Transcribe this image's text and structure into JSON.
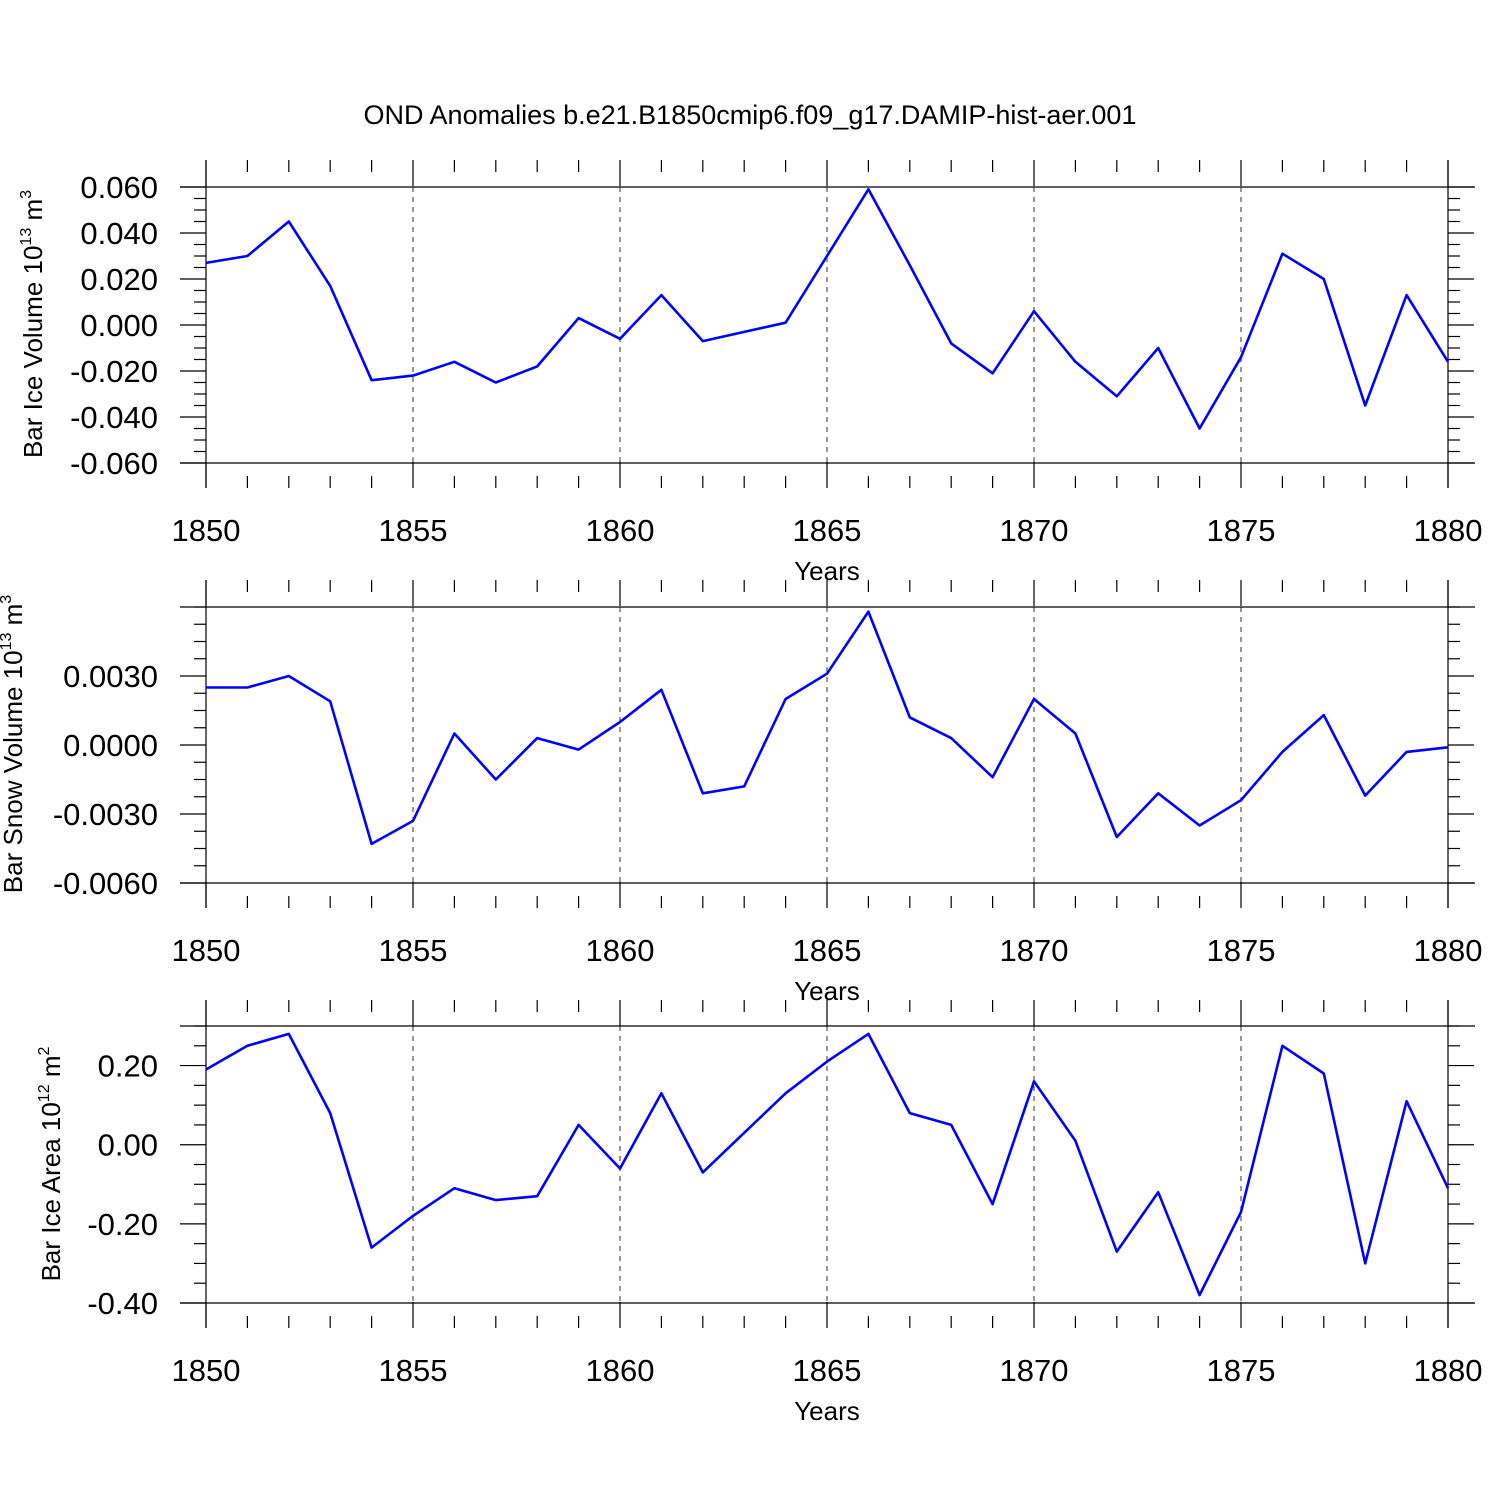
{
  "title": "OND Anomalies b.e21.B1850cmip6.f09_g17.DAMIP-hist-aer.001",
  "colors": {
    "line": "#0000ff",
    "axis": "#000000",
    "grid": "#555555"
  },
  "chart_data": [
    {
      "type": "line",
      "xlabel": "Years",
      "ylabel": {
        "text": "Bar Ice Volume 10",
        "exp": "13",
        "unit": " m",
        "unit_exp": "3"
      },
      "xlim": [
        1850,
        1880
      ],
      "ylim": [
        -0.06,
        0.06
      ],
      "x_ticks": [
        "1850",
        "1855",
        "1860",
        "1865",
        "1870",
        "1875",
        "1880"
      ],
      "y_ticks": [
        "0.060",
        "0.040",
        "0.020",
        "0.000",
        "-0.020",
        "-0.040",
        "-0.060"
      ],
      "y_tick_values": [
        0.06,
        0.04,
        0.02,
        0.0,
        -0.02,
        -0.04,
        -0.06
      ],
      "grid": "vertical dashed at major x ticks",
      "x": [
        1850,
        1851,
        1852,
        1853,
        1854,
        1855,
        1856,
        1857,
        1858,
        1859,
        1860,
        1861,
        1862,
        1863,
        1864,
        1865,
        1866,
        1867,
        1868,
        1869,
        1870,
        1871,
        1872,
        1873,
        1874,
        1875,
        1876,
        1877,
        1878,
        1879,
        1880
      ],
      "values": [
        0.027,
        0.03,
        0.045,
        0.017,
        -0.024,
        -0.022,
        -0.016,
        -0.025,
        -0.018,
        0.003,
        -0.006,
        0.013,
        -0.007,
        -0.003,
        0.001,
        0.03,
        0.059,
        0.026,
        -0.008,
        -0.021,
        0.006,
        -0.016,
        -0.031,
        -0.01,
        -0.045,
        -0.014,
        0.031,
        0.02,
        -0.035,
        0.013,
        -0.016
      ]
    },
    {
      "type": "line",
      "xlabel": "Years",
      "ylabel": {
        "text": "Bar Snow Volume 10",
        "exp": "13",
        "unit": " m",
        "unit_exp": "3"
      },
      "xlim": [
        1850,
        1880
      ],
      "ylim": [
        -0.006,
        0.006
      ],
      "x_ticks": [
        "1850",
        "1855",
        "1860",
        "1865",
        "1870",
        "1875",
        "1880"
      ],
      "y_ticks": [
        "0.0030",
        "0.0000",
        "-0.0030",
        "-0.0060"
      ],
      "y_tick_values": [
        0.003,
        0.0,
        -0.003,
        -0.006
      ],
      "grid": "vertical dashed at major x ticks",
      "x": [
        1850,
        1851,
        1852,
        1853,
        1854,
        1855,
        1856,
        1857,
        1858,
        1859,
        1860,
        1861,
        1862,
        1863,
        1864,
        1865,
        1866,
        1867,
        1868,
        1869,
        1870,
        1871,
        1872,
        1873,
        1874,
        1875,
        1876,
        1877,
        1878,
        1879,
        1880
      ],
      "values": [
        0.0025,
        0.0025,
        0.003,
        0.0019,
        -0.0043,
        -0.0033,
        0.0005,
        -0.0015,
        0.0003,
        -0.0002,
        0.001,
        0.0024,
        -0.0021,
        -0.0018,
        0.002,
        0.0031,
        0.0058,
        0.0012,
        0.0003,
        -0.0014,
        0.002,
        0.0005,
        -0.004,
        -0.0021,
        -0.0035,
        -0.0024,
        -0.0003,
        0.0013,
        -0.0022,
        -0.0003,
        -0.0001
      ]
    },
    {
      "type": "line",
      "xlabel": "Years",
      "ylabel": {
        "text": "Bar Ice Area 10",
        "exp": "12",
        "unit": " m",
        "unit_exp": "2"
      },
      "xlim": [
        1850,
        1880
      ],
      "ylim": [
        -0.4,
        0.3
      ],
      "x_ticks": [
        "1850",
        "1855",
        "1860",
        "1865",
        "1870",
        "1875",
        "1880"
      ],
      "y_ticks": [
        "0.20",
        "0.00",
        "-0.20",
        "-0.40"
      ],
      "y_tick_values": [
        0.2,
        0.0,
        -0.2,
        -0.4
      ],
      "grid": "vertical dashed at major x ticks",
      "x": [
        1850,
        1851,
        1852,
        1853,
        1854,
        1855,
        1856,
        1857,
        1858,
        1859,
        1860,
        1861,
        1862,
        1863,
        1864,
        1865,
        1866,
        1867,
        1868,
        1869,
        1870,
        1871,
        1872,
        1873,
        1874,
        1875,
        1876,
        1877,
        1878,
        1879,
        1880
      ],
      "values": [
        0.19,
        0.25,
        0.28,
        0.08,
        -0.26,
        -0.18,
        -0.11,
        -0.14,
        -0.13,
        0.05,
        -0.06,
        0.13,
        -0.07,
        0.03,
        0.13,
        0.21,
        0.28,
        0.08,
        0.05,
        -0.15,
        0.16,
        0.01,
        -0.27,
        -0.12,
        -0.38,
        -0.17,
        0.25,
        0.18,
        -0.3,
        0.11,
        -0.11
      ]
    }
  ]
}
